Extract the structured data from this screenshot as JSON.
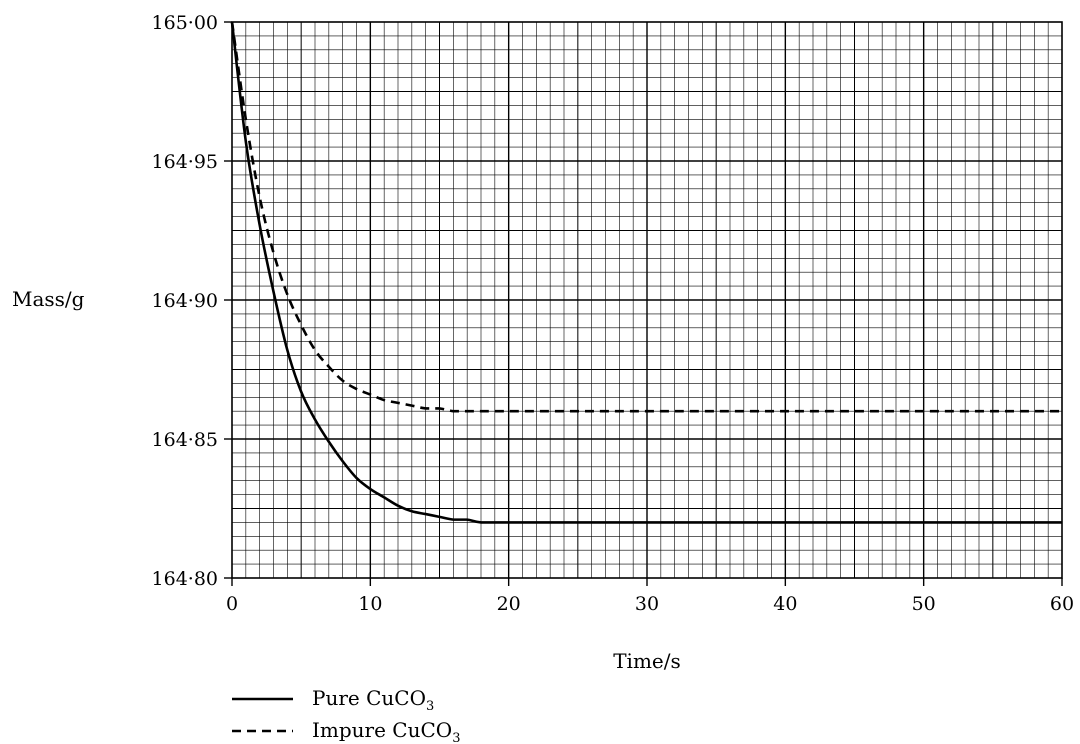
{
  "chart_data": {
    "type": "line",
    "title": "",
    "xlabel": "Time/s",
    "ylabel": "Mass/g",
    "xlim": [
      0,
      60
    ],
    "ylim": [
      164.8,
      165.0
    ],
    "x_ticks": [
      "0",
      "10",
      "20",
      "30",
      "40",
      "50",
      "60"
    ],
    "x_tick_values": [
      0,
      10,
      20,
      30,
      40,
      50,
      60
    ],
    "y_ticks": [
      "164·80",
      "164·85",
      "164·90",
      "164·95",
      "165·00"
    ],
    "y_tick_values": [
      164.8,
      164.85,
      164.9,
      164.95,
      165.0
    ],
    "grid": true,
    "legend_position": "bottom-left",
    "series": [
      {
        "name": "Pure CuCO3",
        "name_main": "Pure CuCO",
        "name_sub": "3",
        "style": "solid",
        "color": "#000000",
        "x": [
          0,
          1,
          2,
          3,
          4,
          5,
          6,
          7,
          8,
          9,
          10,
          11,
          12,
          13,
          14,
          15,
          16,
          17,
          18,
          20,
          25,
          30,
          40,
          50,
          60
        ],
        "y": [
          165.0,
          164.957,
          164.927,
          164.903,
          164.882,
          164.867,
          164.857,
          164.849,
          164.842,
          164.836,
          164.832,
          164.829,
          164.826,
          164.824,
          164.823,
          164.822,
          164.821,
          164.821,
          164.82,
          164.82,
          164.82,
          164.82,
          164.82,
          164.82,
          164.82
        ]
      },
      {
        "name": "Impure CuCO3",
        "name_main": "Impure CuCO",
        "name_sub": "3",
        "style": "dashed",
        "color": "#000000",
        "x": [
          0,
          1,
          2,
          3,
          4,
          5,
          6,
          7,
          8,
          9,
          10,
          11,
          12,
          13,
          14,
          15,
          16,
          17,
          18,
          20,
          25,
          30,
          40,
          50,
          60
        ],
        "y": [
          165.0,
          164.965,
          164.937,
          164.917,
          164.902,
          164.891,
          164.882,
          164.876,
          164.871,
          164.868,
          164.866,
          164.864,
          164.863,
          164.862,
          164.861,
          164.861,
          164.86,
          164.86,
          164.86,
          164.86,
          164.86,
          164.86,
          164.86,
          164.86,
          164.86
        ]
      }
    ]
  }
}
